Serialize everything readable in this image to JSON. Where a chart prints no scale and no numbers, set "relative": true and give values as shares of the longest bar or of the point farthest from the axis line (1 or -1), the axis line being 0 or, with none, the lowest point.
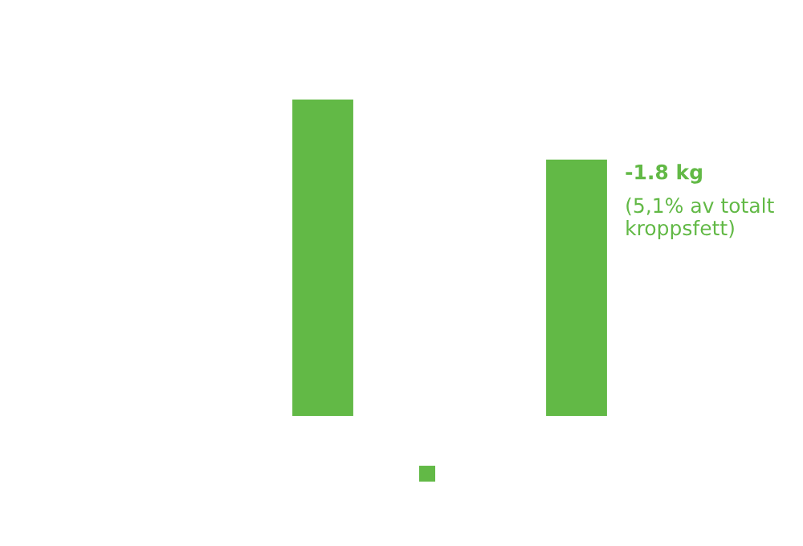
{
  "chart_data": {
    "type": "bar",
    "categories": [
      null,
      null
    ],
    "relative": true,
    "series": [
      {
        "color": "#62b946",
        "values": [
          1,
          0.81
        ]
      }
    ],
    "annotations": [
      "-1.8 kg",
      "(5,1% av totalt kroppsfett)"
    ]
  }
}
